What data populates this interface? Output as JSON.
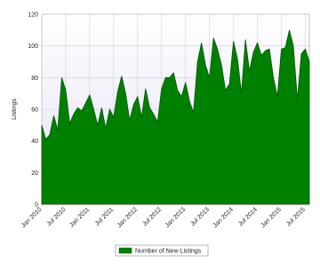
{
  "chart_data": {
    "type": "area",
    "y_label": "Listings",
    "categories": [
      "Jan 2010",
      null,
      null,
      null,
      null,
      null,
      "Jul 2010",
      null,
      null,
      null,
      null,
      null,
      "Jan 2011",
      null,
      null,
      null,
      null,
      null,
      "Jul 2011",
      null,
      null,
      null,
      null,
      null,
      "Jan 2012",
      null,
      null,
      null,
      null,
      null,
      "Jul 2012",
      null,
      null,
      null,
      null,
      null,
      "Jan 2013",
      null,
      null,
      null,
      null,
      null,
      "Jul 2013",
      null,
      null,
      null,
      null,
      null,
      "Jan 2014",
      null,
      null,
      null,
      null,
      null,
      "Jul 2014",
      null,
      null,
      null,
      null,
      null,
      "Jan 2015",
      null,
      null,
      null,
      null,
      null,
      "Jul 2015",
      null
    ],
    "series": [
      {
        "name": "Number of New Listings",
        "color": "#008000",
        "values": [
          50,
          41,
          44,
          56,
          47,
          80,
          72,
          51,
          57,
          61,
          59,
          64,
          69,
          60,
          50,
          61,
          48,
          60,
          55,
          71,
          81,
          70,
          53,
          63,
          68,
          55,
          73,
          61,
          57,
          52,
          73,
          80,
          80,
          83,
          72,
          68,
          77,
          65,
          58,
          90,
          102,
          88,
          80,
          105,
          98,
          88,
          72,
          76,
          103,
          92,
          70,
          104,
          84,
          96,
          102,
          94,
          97,
          98,
          80,
          68,
          98,
          99,
          110,
          100,
          66,
          95,
          98,
          90
        ]
      }
    ],
    "ylim": [
      0,
      120
    ],
    "yticks": [
      0,
      20,
      40,
      60,
      80,
      100,
      120
    ],
    "grid": true
  }
}
